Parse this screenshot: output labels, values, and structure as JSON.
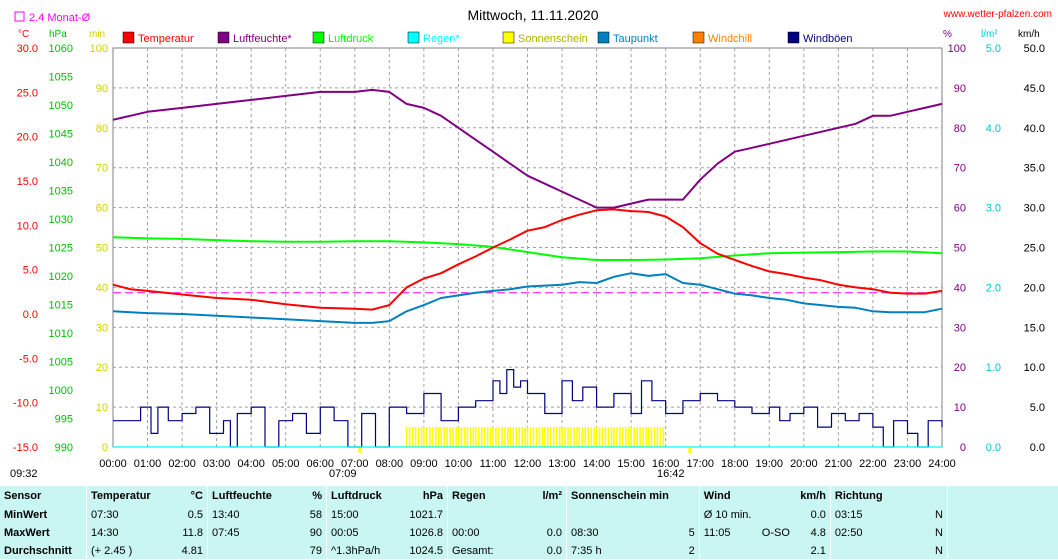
{
  "header": {
    "title": "Mittwoch, 11.11.2020",
    "site": "www.wetter-pfalzen.com",
    "monthly_avg_label": "2.4 Monat-Ø",
    "left_units": [
      "°C",
      "hPa",
      "min"
    ],
    "right_units": [
      "%",
      "l/m²",
      "km/h"
    ]
  },
  "colors": {
    "temperature": "#ff0000",
    "humidity": "#800080",
    "pressure": "#00ff00",
    "rain": "#00ffff",
    "sunshine": "#ffff00",
    "dewpoint": "#0080c0",
    "windchill": "#ff8000",
    "gusts": "#000080",
    "monthly_avg": "#ff00ff",
    "stats_bg": "#c9f5f2"
  },
  "chart_data": {
    "type": "line",
    "title": "Mittwoch, 11.11.2020",
    "x_ticks": [
      "00:00",
      "01:00",
      "02:00",
      "03:00",
      "04:00",
      "05:00",
      "06:00",
      "07:00",
      "08:00",
      "09:00",
      "10:00",
      "11:00",
      "12:00",
      "13:00",
      "14:00",
      "15:00",
      "16:00",
      "17:00",
      "18:00",
      "19:00",
      "20:00",
      "21:00",
      "22:00",
      "23:00",
      "24:00"
    ],
    "x_unit": "hours",
    "x_range": [
      0,
      24
    ],
    "grid": true,
    "legend_placement": "top",
    "axes": {
      "temperature_c": {
        "range": [
          -15,
          30
        ],
        "ticks": [
          "30.0",
          "25.0",
          "20.0",
          "15.0",
          "10.0",
          "5.0",
          "0.0",
          "-5.0",
          "-10.0",
          "-15.0"
        ]
      },
      "pressure_hpa": {
        "range": [
          990,
          1060
        ],
        "ticks": [
          "1060",
          "1055",
          "1050",
          "1045",
          "1040",
          "1035",
          "1030",
          "1025",
          "1020",
          "1015",
          "1010",
          "1005",
          "1000",
          "995",
          "990"
        ]
      },
      "sunshine_min": {
        "range": [
          0,
          100
        ],
        "ticks": [
          "100",
          "90",
          "80",
          "70",
          "60",
          "50",
          "40",
          "30",
          "20",
          "10",
          "0"
        ]
      },
      "humidity_pct": {
        "range": [
          0,
          100
        ],
        "ticks": [
          "100",
          "90",
          "80",
          "70",
          "60",
          "50",
          "40",
          "30",
          "20",
          "10",
          "0"
        ]
      },
      "rain_lm2": {
        "range": [
          0,
          5
        ],
        "ticks": [
          "5.0",
          "4.0",
          "3.0",
          "2.0",
          "1.0",
          "0.0"
        ]
      },
      "wind_kmh": {
        "range": [
          0,
          50
        ],
        "ticks": [
          "50.0",
          "45.0",
          "40.0",
          "35.0",
          "30.0",
          "25.0",
          "20.0",
          "15.0",
          "10.0",
          "5.0",
          "0.0"
        ]
      }
    },
    "sun_markers": [
      "07:09",
      "16:42"
    ],
    "monthly_avg_temp": 2.4,
    "series": [
      {
        "name": "Temperatur",
        "axis": "temperature_c",
        "color": "#ff0000",
        "x": [
          0,
          0.5,
          1,
          2,
          3,
          4,
          5,
          6,
          7,
          7.5,
          8,
          8.5,
          9,
          9.5,
          10,
          10.5,
          11,
          11.5,
          12,
          12.5,
          13,
          13.5,
          14,
          14.5,
          15,
          15.5,
          16,
          16.5,
          17,
          17.5,
          18,
          18.5,
          19,
          19.5,
          20,
          20.5,
          21,
          21.5,
          22,
          22.5,
          23,
          23.5,
          24
        ],
        "y": [
          3.3,
          2.8,
          2.6,
          2.2,
          1.8,
          1.6,
          1.1,
          0.7,
          0.6,
          0.5,
          1.0,
          3.0,
          4.0,
          4.6,
          5.6,
          6.5,
          7.5,
          8.4,
          9.4,
          9.8,
          10.6,
          11.2,
          11.7,
          11.8,
          11.6,
          11.5,
          11.0,
          9.8,
          8.0,
          6.8,
          6.1,
          5.4,
          4.8,
          4.5,
          4.1,
          3.8,
          3.3,
          3.0,
          2.8,
          2.4,
          2.3,
          2.3,
          2.6
        ]
      },
      {
        "name": "Luftfeuchte*",
        "axis": "humidity_pct",
        "color": "#800080",
        "x": [
          0,
          0.5,
          1,
          2,
          3,
          4,
          5,
          6,
          7,
          7.5,
          8,
          8.5,
          9,
          9.5,
          10,
          10.5,
          11,
          11.5,
          12,
          12.5,
          13,
          13.5,
          14,
          14.5,
          15,
          15.5,
          16,
          16.5,
          17,
          17.5,
          18,
          18.5,
          19,
          19.5,
          20,
          20.5,
          21,
          21.5,
          22,
          22.5,
          23,
          23.5,
          24
        ],
        "y": [
          82,
          83,
          84,
          85,
          86,
          87,
          88,
          89,
          89,
          89.5,
          89,
          86,
          85,
          83,
          80,
          77,
          74,
          71,
          68,
          66,
          64,
          62,
          60,
          60,
          61,
          62,
          62,
          62,
          67,
          71,
          74,
          75,
          76,
          77,
          78,
          79,
          80,
          81,
          83,
          83,
          84,
          85,
          86
        ]
      },
      {
        "name": "Luftdruck",
        "axis": "pressure_hpa",
        "color": "#00ff00",
        "x": [
          0,
          1,
          2,
          3,
          4,
          5,
          6,
          7,
          8,
          9,
          10,
          11,
          12,
          13,
          14,
          15,
          16,
          17,
          18,
          19,
          20,
          21,
          22,
          23,
          24
        ],
        "y": [
          1026.8,
          1026.6,
          1026.5,
          1026.3,
          1026.1,
          1026.0,
          1026.0,
          1026.1,
          1026.1,
          1025.9,
          1025.6,
          1025.1,
          1024.2,
          1023.3,
          1022.8,
          1022.8,
          1022.9,
          1023.1,
          1023.6,
          1024.0,
          1024.1,
          1024.2,
          1024.3,
          1024.3,
          1024.0
        ]
      },
      {
        "name": "Regen*",
        "axis": "rain_lm2",
        "color": "#00ffff",
        "x": [
          0,
          24
        ],
        "y": [
          0,
          0
        ]
      },
      {
        "name": "Sonnenschein",
        "axis": "sunshine_min",
        "color": "#ffff00",
        "x": [
          8.5,
          9,
          9.5,
          10,
          10.5,
          11,
          11.5,
          12,
          12.5,
          13,
          13.5,
          14,
          14.5,
          15,
          15.5,
          16
        ],
        "y": [
          5,
          5,
          5,
          5,
          5,
          5,
          5,
          5,
          5,
          5,
          5,
          5,
          5,
          5,
          5,
          5
        ]
      },
      {
        "name": "Taupunkt",
        "axis": "temperature_c",
        "color": "#0080c0",
        "x": [
          0,
          0.5,
          1,
          2,
          3,
          4,
          5,
          6,
          7,
          7.5,
          8,
          8.5,
          9,
          9.5,
          10,
          10.5,
          11,
          11.5,
          12,
          12.5,
          13,
          13.5,
          14,
          14.5,
          15,
          15.5,
          16,
          16.5,
          17,
          17.5,
          18,
          18.5,
          19,
          19.5,
          20,
          20.5,
          21,
          21.5,
          22,
          22.5,
          23,
          23.5,
          24
        ],
        "y": [
          0.3,
          0.2,
          0.1,
          0.0,
          -0.2,
          -0.4,
          -0.6,
          -0.8,
          -1.0,
          -1.0,
          -0.8,
          0.3,
          1.0,
          1.8,
          2.1,
          2.4,
          2.6,
          2.8,
          3.1,
          3.2,
          3.3,
          3.6,
          3.5,
          4.2,
          4.6,
          4.3,
          4.5,
          3.5,
          3.3,
          2.8,
          2.3,
          2.1,
          1.8,
          1.6,
          1.2,
          1.0,
          0.8,
          0.7,
          0.3,
          0.2,
          0.2,
          0.2,
          0.6
        ]
      },
      {
        "name": "Windchill",
        "axis": "temperature_c",
        "color": "#ff8000",
        "x": [],
        "y": []
      },
      {
        "name": "Windböen",
        "axis": "wind_kmh",
        "color": "#000080",
        "x": [
          0,
          0.4,
          0.8,
          1.1,
          1.3,
          1.6,
          2.0,
          2.4,
          2.8,
          3.2,
          3.4,
          3.6,
          4.0,
          4.4,
          4.8,
          5.2,
          5.6,
          6.0,
          6.4,
          6.8,
          7.2,
          7.6,
          8.0,
          8.5,
          9.0,
          9.5,
          10.0,
          10.5,
          11.0,
          11.2,
          11.4,
          11.6,
          11.8,
          12.0,
          12.5,
          13.0,
          13.3,
          13.6,
          14.0,
          14.5,
          15.0,
          15.3,
          15.6,
          16.0,
          16.5,
          17.0,
          17.5,
          18.0,
          18.5,
          19.0,
          19.3,
          19.6,
          20.0,
          20.4,
          20.8,
          21.2,
          21.6,
          22.0,
          22.3,
          22.6,
          23.0,
          23.3,
          23.6,
          24.0
        ],
        "y": [
          3.3,
          3.3,
          5.0,
          1.7,
          5.0,
          3.3,
          4.2,
          5.0,
          1.7,
          3.3,
          0.0,
          4.2,
          5.0,
          0.0,
          3.3,
          4.2,
          1.7,
          5.0,
          3.3,
          0.0,
          4.2,
          0.0,
          5.0,
          4.2,
          6.7,
          3.3,
          5.0,
          5.8,
          8.3,
          6.7,
          9.7,
          7.5,
          8.3,
          6.7,
          4.2,
          8.3,
          5.8,
          7.5,
          5.0,
          6.7,
          4.2,
          8.3,
          5.8,
          4.2,
          5.8,
          6.7,
          5.8,
          5.0,
          4.2,
          5.0,
          3.3,
          4.2,
          5.0,
          2.5,
          4.2,
          3.3,
          4.2,
          2.5,
          0.0,
          3.3,
          1.7,
          0.0,
          3.3,
          2.5
        ]
      }
    ]
  },
  "legend": [
    {
      "label": "Temperatur",
      "color": "#ff0000"
    },
    {
      "label": "Luftfeuchte*",
      "color": "#800080"
    },
    {
      "label": "Luftdruck",
      "color": "#00ff00"
    },
    {
      "label": "Regen*",
      "color": "#00ffff"
    },
    {
      "label": "Sonnenschein",
      "color": "#ffff00"
    },
    {
      "label": "Taupunkt",
      "color": "#0080c0"
    },
    {
      "label": "Windchill",
      "color": "#ff8000"
    },
    {
      "label": "Windböen",
      "color": "#000080"
    }
  ],
  "time_labels": {
    "current": "09:32",
    "sunrise": "07:09",
    "sunset": "16:42"
  },
  "stats": {
    "headers": {
      "sensor": "Sensor",
      "temperature": "Temperatur",
      "temperature_unit": "°C",
      "humidity": "Luftfeuchte",
      "humidity_unit": "%",
      "pressure": "Luftdruck",
      "pressure_unit": "hPa",
      "rain": "Regen",
      "rain_unit": "l/m²",
      "sunshine": "Sonnenschein min",
      "wind": "Wind",
      "wind_unit": "km/h",
      "direction": "Richtung"
    },
    "rows": [
      {
        "label": "MinWert",
        "temp_time": "07:30",
        "temp_val": "0.5",
        "hum_time": "13:40",
        "hum_val": "58",
        "pres_time": "15:00",
        "pres_val": "1021.7",
        "rain_time": "",
        "rain_val": "",
        "sun_time": "",
        "sun_val": "",
        "wind_time": "Ø 10 min.",
        "wind_dir": "",
        "wind_val": "0.0",
        "dir_time": "03:15",
        "dir_val": "N"
      },
      {
        "label": "MaxWert",
        "temp_time": "14:30",
        "temp_val": "11.8",
        "hum_time": "07:45",
        "hum_val": "90",
        "pres_time": "00:05",
        "pres_val": "1026.8",
        "rain_time": "00:00",
        "rain_val": "0.0",
        "sun_time": "08:30",
        "sun_val": "5",
        "wind_time": "11:05",
        "wind_dir": "O-SO",
        "wind_val": "4.8",
        "dir_time": "02:50",
        "dir_val": "N"
      },
      {
        "label": "Durchschnitt",
        "temp_time": "(+ 2.45 )",
        "temp_val": "4.81",
        "hum_time": "",
        "hum_val": "79",
        "pres_time": "^1.3hPa/h",
        "pres_val": "1024.5",
        "rain_time": "Gesamt:",
        "rain_val": "0.0",
        "sun_time": "7:35 h",
        "sun_val": "2",
        "wind_time": "",
        "wind_dir": "",
        "wind_val": "2.1",
        "dir_time": "",
        "dir_val": "N"
      }
    ]
  }
}
